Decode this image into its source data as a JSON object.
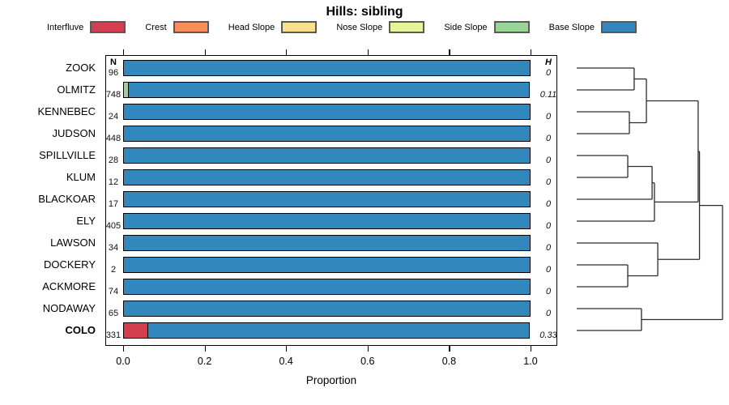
{
  "title": "Hills: sibling",
  "legend": [
    {
      "label": "Interfluve",
      "color": "#d53e4f"
    },
    {
      "label": "Crest",
      "color": "#fc8d59"
    },
    {
      "label": "Head Slope",
      "color": "#fee08b"
    },
    {
      "label": "Nose Slope",
      "color": "#e6f598"
    },
    {
      "label": "Side Slope",
      "color": "#99d594"
    },
    {
      "label": "Base Slope",
      "color": "#3288bd"
    }
  ],
  "columns": {
    "n_header": "N",
    "h_header": "H"
  },
  "axis": {
    "xlabel": "Proportion",
    "ticks": [
      "0.0",
      "0.2",
      "0.4",
      "0.6",
      "0.8",
      "1.0"
    ],
    "tick_values": [
      0,
      0.2,
      0.4,
      0.6,
      0.8,
      1.0
    ]
  },
  "chart_data": {
    "type": "bar",
    "orientation": "horizontal-stacked",
    "title": "Hills: sibling",
    "xlabel": "Proportion",
    "xlim": [
      0,
      1
    ],
    "grid": false,
    "legend_position": "top",
    "categories": [
      "ZOOK",
      "OLMITZ",
      "KENNEBEC",
      "JUDSON",
      "SPILLVILLE",
      "KLUM",
      "BLACKOAR",
      "ELY",
      "LAWSON",
      "DOCKERY",
      "ACKMORE",
      "NODAWAY",
      "COLO"
    ],
    "rows": [
      {
        "name": "ZOOK",
        "n": "96",
        "h": "0",
        "bold": false,
        "segments": [
          {
            "class": "Base Slope",
            "p": 1.0
          }
        ]
      },
      {
        "name": "OLMITZ",
        "n": "748",
        "h": "0.11",
        "bold": false,
        "segments": [
          {
            "class": "Side Slope",
            "p": 0.015
          },
          {
            "class": "Base Slope",
            "p": 0.985
          }
        ]
      },
      {
        "name": "KENNEBEC",
        "n": "24",
        "h": "0",
        "bold": false,
        "segments": [
          {
            "class": "Base Slope",
            "p": 1.0
          }
        ]
      },
      {
        "name": "JUDSON",
        "n": "448",
        "h": "0",
        "bold": false,
        "segments": [
          {
            "class": "Base Slope",
            "p": 1.0
          }
        ]
      },
      {
        "name": "SPILLVILLE",
        "n": "28",
        "h": "0",
        "bold": false,
        "segments": [
          {
            "class": "Base Slope",
            "p": 1.0
          }
        ]
      },
      {
        "name": "KLUM",
        "n": "12",
        "h": "0",
        "bold": false,
        "segments": [
          {
            "class": "Base Slope",
            "p": 1.0
          }
        ]
      },
      {
        "name": "BLACKOAR",
        "n": "17",
        "h": "0",
        "bold": false,
        "segments": [
          {
            "class": "Base Slope",
            "p": 1.0
          }
        ]
      },
      {
        "name": "ELY",
        "n": "405",
        "h": "0",
        "bold": false,
        "segments": [
          {
            "class": "Base Slope",
            "p": 1.0
          }
        ]
      },
      {
        "name": "LAWSON",
        "n": "34",
        "h": "0",
        "bold": false,
        "segments": [
          {
            "class": "Base Slope",
            "p": 1.0
          }
        ]
      },
      {
        "name": "DOCKERY",
        "n": "2",
        "h": "0",
        "bold": false,
        "segments": [
          {
            "class": "Base Slope",
            "p": 1.0
          }
        ]
      },
      {
        "name": "ACKMORE",
        "n": "74",
        "h": "0",
        "bold": false,
        "segments": [
          {
            "class": "Base Slope",
            "p": 1.0
          }
        ]
      },
      {
        "name": "NODAWAY",
        "n": "65",
        "h": "0",
        "bold": false,
        "segments": [
          {
            "class": "Base Slope",
            "p": 1.0
          }
        ]
      },
      {
        "name": "COLO",
        "n": "331",
        "h": "0.33",
        "bold": true,
        "segments": [
          {
            "class": "Interfluve",
            "p": 0.062
          },
          {
            "class": "Base Slope",
            "p": 0.938
          }
        ]
      }
    ],
    "dendrogram": {
      "description": "hierarchical clustering of categories, heights normalized 0-1",
      "tree": {
        "h": 1.0,
        "children": [
          {
            "h": 0.842,
            "children": [
              {
                "h": 0.833,
                "children": [
                  {
                    "h": 0.478,
                    "children": [
                      {
                        "h": 0.394,
                        "children": [
                          "ZOOK",
                          "OLMITZ"
                        ]
                      },
                      {
                        "h": 0.361,
                        "children": [
                          "KENNEBEC",
                          "JUDSON"
                        ]
                      }
                    ]
                  },
                  {
                    "h": 0.533,
                    "children": [
                      {
                        "h": 0.517,
                        "children": [
                          {
                            "h": 0.35,
                            "children": [
                              "SPILLVILLE",
                              "KLUM"
                            ]
                          },
                          "BLACKOAR"
                        ]
                      },
                      "ELY"
                    ]
                  }
                ]
              },
              {
                "h": 0.556,
                "children": [
                  "LAWSON",
                  {
                    "h": 0.35,
                    "children": [
                      "DOCKERY",
                      "ACKMORE"
                    ]
                  }
                ]
              }
            ]
          },
          {
            "h": 0.444,
            "children": [
              "NODAWAY",
              "COLO"
            ]
          }
        ]
      }
    }
  }
}
